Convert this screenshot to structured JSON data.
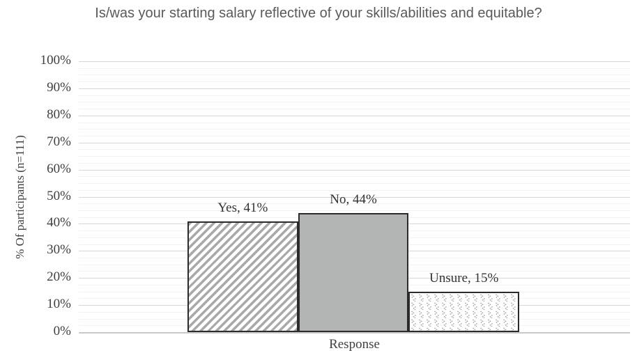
{
  "chart": {
    "title": "Is/was your starting salary reflective of your skills/abilities and equitable?",
    "y_axis_title": "% Of participants (n=111)",
    "x_axis_title": "Response"
  },
  "chart_data": {
    "type": "bar",
    "title": "Is/was your starting salary reflective of your skills/abilities and equitable?",
    "categories": [
      "Yes",
      "No",
      "Unsure"
    ],
    "values": [
      41,
      44,
      15
    ],
    "data_labels": [
      "Yes, 41%",
      "No, 44%",
      "Unsure, 15%"
    ],
    "xlabel": "Response",
    "ylabel": "% Of participants (n=111)",
    "ylim": [
      0,
      100
    ],
    "y_tick_labels": [
      "0%",
      "10%",
      "20%",
      "30%",
      "40%",
      "50%",
      "60%",
      "70%",
      "80%",
      "90%",
      "100%"
    ],
    "y_major_step": 10,
    "y_minor_step": 2.5,
    "grid": "horizontal major + minor",
    "legend": "none",
    "bar_fill_styles": [
      "diagonal-hatch",
      "solid-gray",
      "dotted-chevron"
    ],
    "colors": {
      "solid_bar": "#b3b5b4",
      "hatch_stripe": "#a9a9a9",
      "pattern_dot": "#9c9c9c",
      "bar_border": "#2b2b2b",
      "major_gridline": "#d7d7d7",
      "minor_gridline": "#f2f2f2",
      "axis_line": "#c9c9c9",
      "title_text": "#595959",
      "axis_text": "#3f3f3f"
    }
  }
}
